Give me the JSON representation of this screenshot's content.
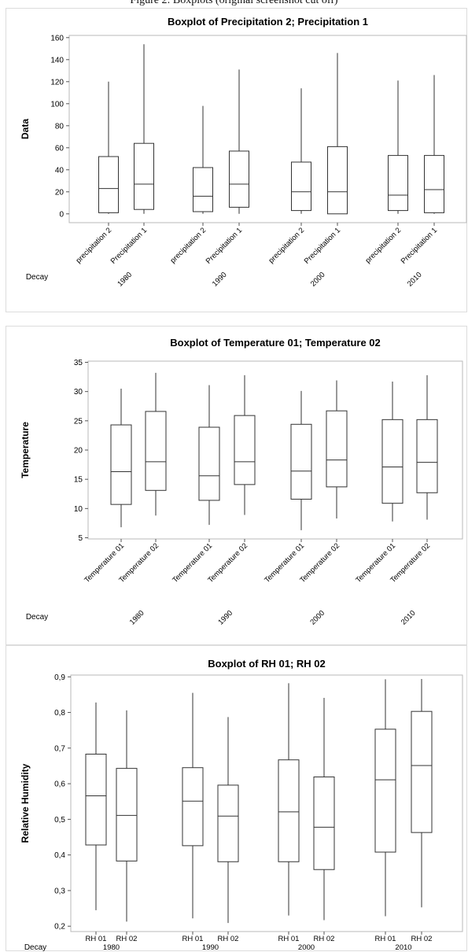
{
  "caption_fragment": "Figure 2: Boxplots (original screenshot cut off)",
  "chart_data": [
    {
      "type": "boxplot",
      "title": "Boxplot of Precipitation 2; Precipitation 1",
      "ylabel": "Data",
      "group_axis_label": "Decay",
      "ylim": [
        -8,
        162
      ],
      "yticks": [
        0,
        20,
        40,
        60,
        80,
        100,
        120,
        140,
        160
      ],
      "tick_decimal": ".",
      "rotate_labels": true,
      "groups": [
        {
          "label": "1980",
          "boxes": [
            {
              "label": "precipitation 2",
              "min": 0,
              "q1": 1,
              "median": 23,
              "q3": 52,
              "max": 120
            },
            {
              "label": "Precipitation 1",
              "min": 0,
              "q1": 4,
              "median": 27,
              "q3": 64,
              "max": 154
            }
          ]
        },
        {
          "label": "1990",
          "boxes": [
            {
              "label": "precipitation 2",
              "min": 0,
              "q1": 2,
              "median": 16,
              "q3": 42,
              "max": 98
            },
            {
              "label": "Precipitation 1",
              "min": 0,
              "q1": 6,
              "median": 27,
              "q3": 57,
              "max": 131
            }
          ]
        },
        {
          "label": "2000",
          "boxes": [
            {
              "label": "precipitation 2",
              "min": 0,
              "q1": 3,
              "median": 20,
              "q3": 47,
              "max": 114
            },
            {
              "label": "Precipitation 1",
              "min": 0,
              "q1": 0,
              "median": 20,
              "q3": 61,
              "max": 146
            }
          ]
        },
        {
          "label": "2010",
          "boxes": [
            {
              "label": "precipitation 2",
              "min": 0,
              "q1": 3,
              "median": 17,
              "q3": 53,
              "max": 121
            },
            {
              "label": "Precipitation 1",
              "min": 0,
              "q1": 1,
              "median": 22,
              "q3": 53,
              "max": 126
            }
          ]
        }
      ]
    },
    {
      "type": "boxplot",
      "title": "Boxplot of Temperature 01; Temperature 02",
      "ylabel": "Temperature",
      "group_axis_label": "Decay",
      "ylim": [
        4.8,
        35.2
      ],
      "yticks": [
        5,
        10,
        15,
        20,
        25,
        30,
        35
      ],
      "tick_decimal": ".",
      "rotate_labels": true,
      "groups": [
        {
          "label": "1980",
          "boxes": [
            {
              "label": "Temperature 01",
              "min": 6.8,
              "q1": 10.7,
              "median": 16.3,
              "q3": 24.3,
              "max": 30.5
            },
            {
              "label": "Temperature 02",
              "min": 8.8,
              "q1": 13.1,
              "median": 18.0,
              "q3": 26.6,
              "max": 33.2
            }
          ]
        },
        {
          "label": "1990",
          "boxes": [
            {
              "label": "Temperature 01",
              "min": 7.2,
              "q1": 11.4,
              "median": 15.6,
              "q3": 23.9,
              "max": 31.1
            },
            {
              "label": "Temperature 02",
              "min": 8.9,
              "q1": 14.1,
              "median": 18.0,
              "q3": 25.9,
              "max": 32.8
            }
          ]
        },
        {
          "label": "2000",
          "boxes": [
            {
              "label": "Temperature 01",
              "min": 6.3,
              "q1": 11.6,
              "median": 16.4,
              "q3": 24.4,
              "max": 30.1
            },
            {
              "label": "Temperature 02",
              "min": 8.3,
              "q1": 13.7,
              "median": 18.3,
              "q3": 26.7,
              "max": 31.9
            }
          ]
        },
        {
          "label": "2010",
          "boxes": [
            {
              "label": "Temperature 01",
              "min": 7.8,
              "q1": 10.9,
              "median": 17.1,
              "q3": 25.2,
              "max": 31.7
            },
            {
              "label": "Temperature 02",
              "min": 8.1,
              "q1": 12.7,
              "median": 17.9,
              "q3": 25.2,
              "max": 32.8
            }
          ]
        }
      ]
    },
    {
      "type": "boxplot",
      "title": "Boxplot of RH 01; RH 02",
      "ylabel": "Relative Humidity",
      "group_axis_label": "Decay",
      "ylim": [
        0.185,
        0.905
      ],
      "yticks": [
        0.2,
        0.3,
        0.4,
        0.5,
        0.6,
        0.7,
        0.8,
        0.9
      ],
      "tick_decimal": ",",
      "rotate_labels": false,
      "groups": [
        {
          "label": "1980",
          "boxes": [
            {
              "label": "RH 01",
              "min": 0.245,
              "q1": 0.428,
              "median": 0.566,
              "q3": 0.683,
              "max": 0.828
            },
            {
              "label": "RH 02",
              "min": 0.213,
              "q1": 0.383,
              "median": 0.511,
              "q3": 0.643,
              "max": 0.806
            }
          ]
        },
        {
          "label": "1990",
          "boxes": [
            {
              "label": "RH 01",
              "min": 0.222,
              "q1": 0.426,
              "median": 0.551,
              "q3": 0.645,
              "max": 0.855
            },
            {
              "label": "RH 02",
              "min": 0.209,
              "q1": 0.381,
              "median": 0.509,
              "q3": 0.596,
              "max": 0.787
            }
          ]
        },
        {
          "label": "2000",
          "boxes": [
            {
              "label": "RH 01",
              "min": 0.23,
              "q1": 0.381,
              "median": 0.521,
              "q3": 0.667,
              "max": 0.882
            },
            {
              "label": "RH 02",
              "min": 0.217,
              "q1": 0.359,
              "median": 0.478,
              "q3": 0.619,
              "max": 0.841
            }
          ]
        },
        {
          "label": "2010",
          "boxes": [
            {
              "label": "RH 01",
              "min": 0.228,
              "q1": 0.408,
              "median": 0.611,
              "q3": 0.753,
              "max": 0.893
            },
            {
              "label": "RH 02",
              "min": 0.253,
              "q1": 0.463,
              "median": 0.651,
              "q3": 0.803,
              "max": 0.894
            }
          ]
        }
      ]
    }
  ]
}
